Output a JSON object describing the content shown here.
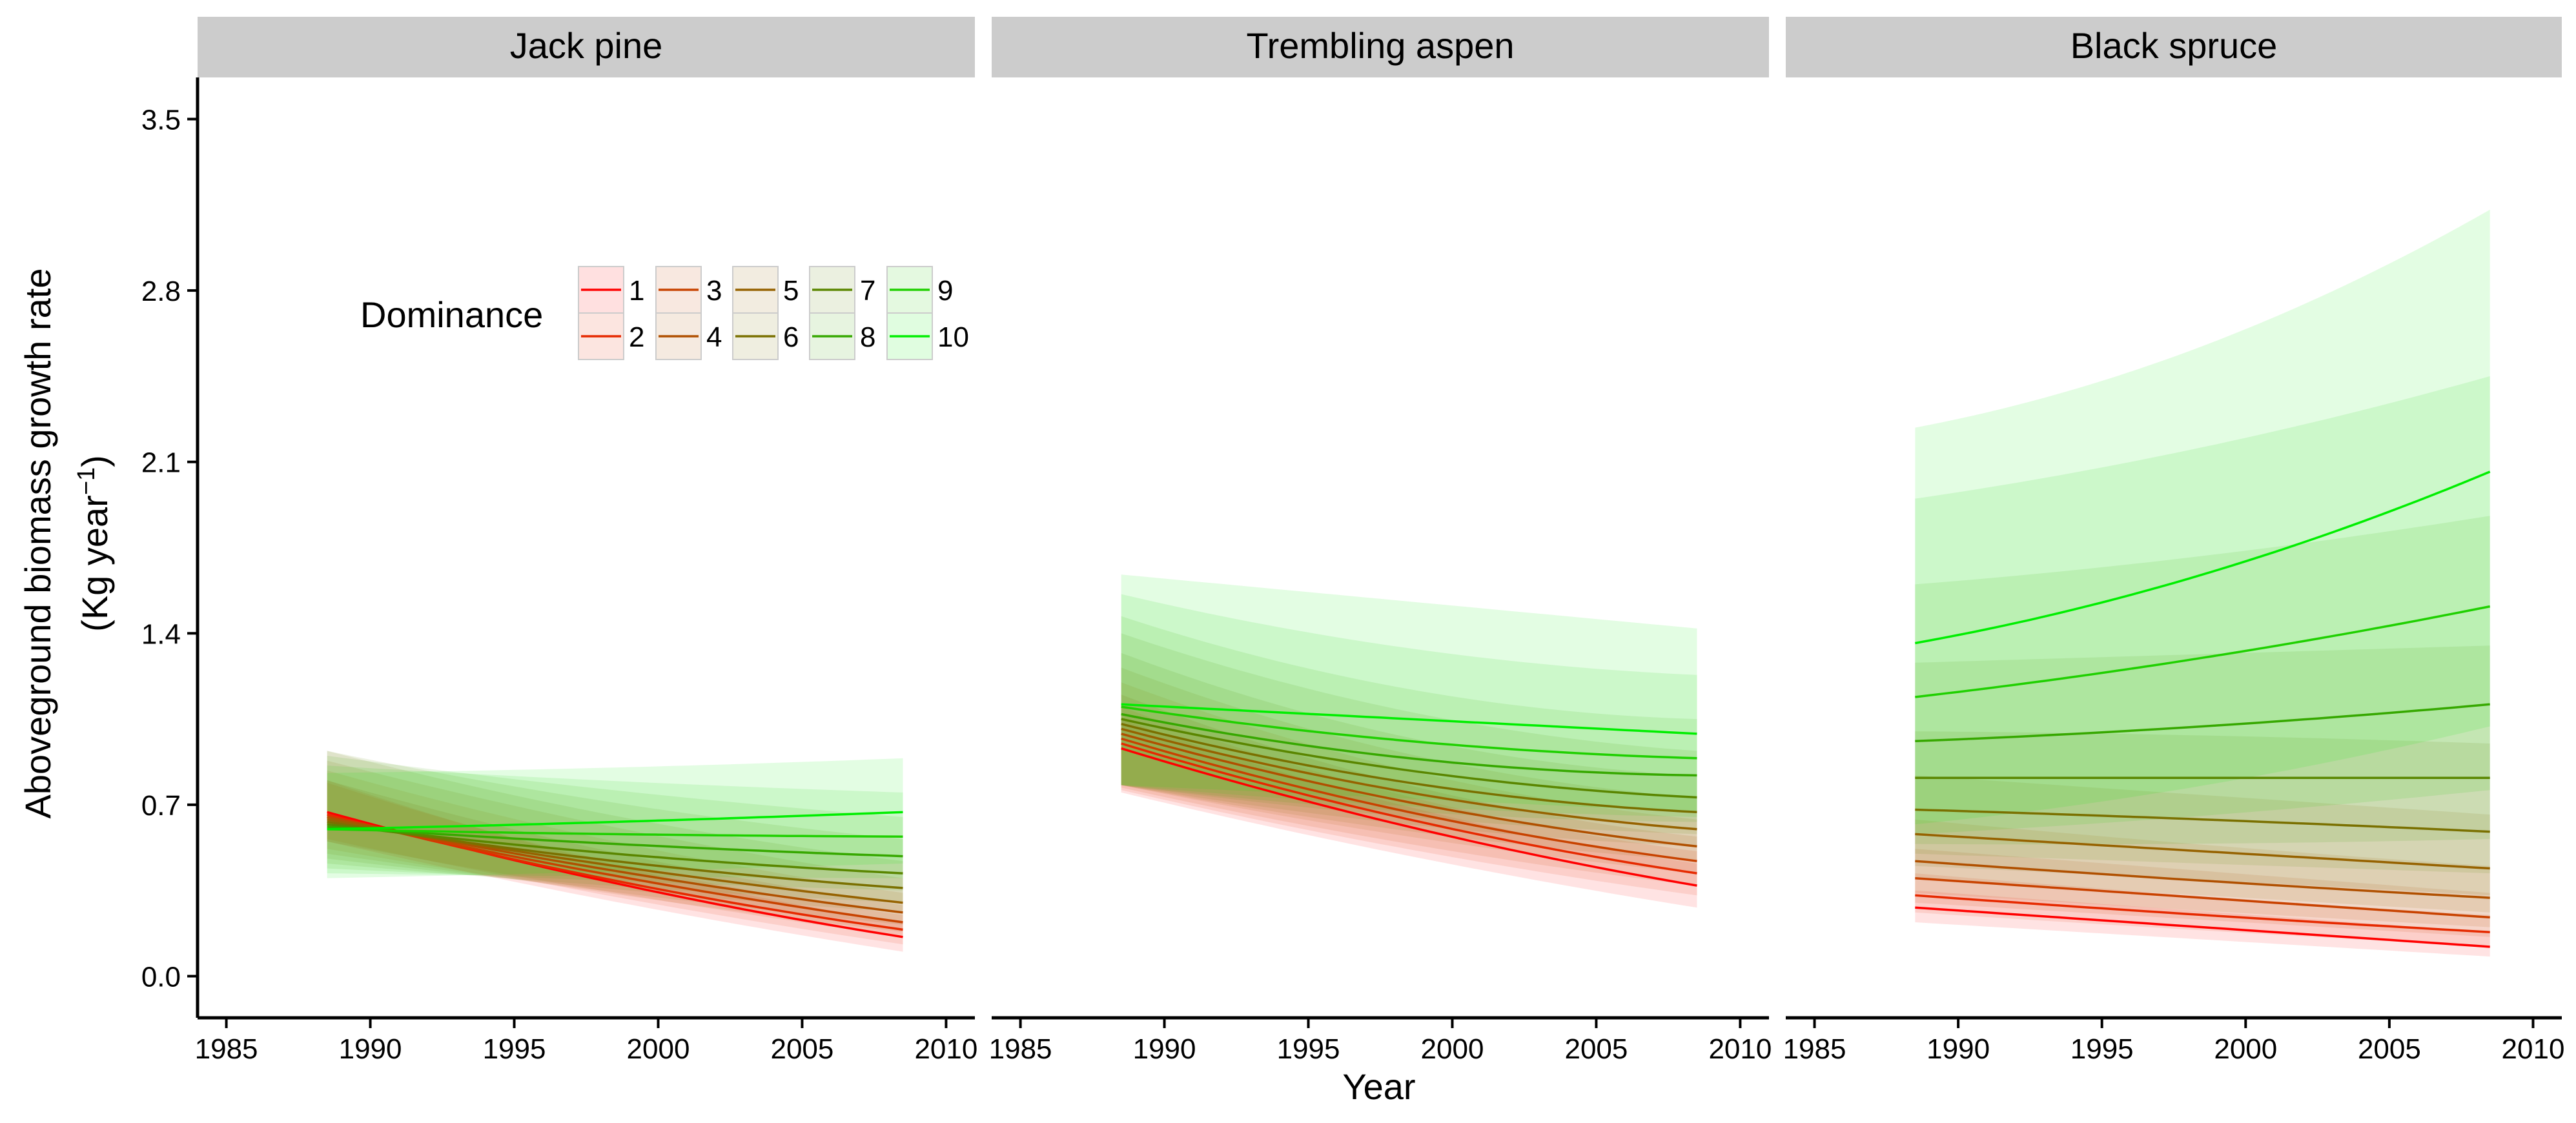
{
  "chart_data": {
    "type": "line",
    "xlabel": "Year",
    "ylabel_line1": "Aboveground biomass growth rate",
    "ylabel_line2_base": "(Kg year",
    "ylabel_line2_sup": "−1",
    "ylabel_line2_end": ")",
    "xlim": [
      1984,
      2011
    ],
    "ylim": [
      -0.17,
      3.67
    ],
    "x_ticks": [
      1985,
      1990,
      1995,
      2000,
      2005,
      2010
    ],
    "y_ticks": [
      0.0,
      0.7,
      1.4,
      2.1,
      2.8,
      3.5
    ],
    "y_tick_labels": [
      "0.0",
      "0.7",
      "1.4",
      "2.1",
      "2.8",
      "3.5"
    ],
    "x_range": [
      1988.5,
      2008.5
    ],
    "grid": false,
    "legend": {
      "title": "Dominance",
      "position": "top-left",
      "entries": [
        "1",
        "2",
        "3",
        "4",
        "5",
        "6",
        "7",
        "8",
        "9",
        "10"
      ]
    },
    "colors": [
      "#ff0000",
      "#e62900",
      "#c84200",
      "#b05000",
      "#966200",
      "#7a7000",
      "#5a8600",
      "#36a800",
      "#1fd000",
      "#00ee00"
    ],
    "panels": [
      {
        "name": "Jack pine",
        "series": [
          {
            "name": "1",
            "y_start": 0.67,
            "y_mid": 0.38,
            "y_end": 0.16,
            "lo_start": 0.55,
            "lo_end": 0.1,
            "hi_start": 0.8,
            "hi_end": 0.22
          },
          {
            "name": "2",
            "y_start": 0.66,
            "y_mid": 0.39,
            "y_end": 0.19,
            "lo_start": 0.56,
            "lo_end": 0.13,
            "hi_start": 0.79,
            "hi_end": 0.25
          },
          {
            "name": "3",
            "y_start": 0.65,
            "y_mid": 0.41,
            "y_end": 0.22,
            "lo_start": 0.55,
            "lo_end": 0.16,
            "hi_start": 0.8,
            "hi_end": 0.29
          },
          {
            "name": "4",
            "y_start": 0.65,
            "y_mid": 0.43,
            "y_end": 0.26,
            "lo_start": 0.52,
            "lo_end": 0.18,
            "hi_start": 0.84,
            "hi_end": 0.34
          },
          {
            "name": "5",
            "y_start": 0.64,
            "y_mid": 0.45,
            "y_end": 0.3,
            "lo_start": 0.5,
            "lo_end": 0.21,
            "hi_start": 0.88,
            "hi_end": 0.4
          },
          {
            "name": "6",
            "y_start": 0.63,
            "y_mid": 0.47,
            "y_end": 0.36,
            "lo_start": 0.48,
            "lo_end": 0.26,
            "hi_start": 0.92,
            "hi_end": 0.47
          },
          {
            "name": "7",
            "y_start": 0.62,
            "y_mid": 0.5,
            "y_end": 0.42,
            "lo_start": 0.46,
            "lo_end": 0.3,
            "hi_start": 0.92,
            "hi_end": 0.56
          },
          {
            "name": "8",
            "y_start": 0.61,
            "y_mid": 0.54,
            "y_end": 0.49,
            "lo_start": 0.44,
            "lo_end": 0.35,
            "hi_start": 0.9,
            "hi_end": 0.65
          },
          {
            "name": "9",
            "y_start": 0.6,
            "y_mid": 0.58,
            "y_end": 0.57,
            "lo_start": 0.42,
            "lo_end": 0.4,
            "hi_start": 0.86,
            "hi_end": 0.75
          },
          {
            "name": "10",
            "y_start": 0.6,
            "y_mid": 0.63,
            "y_end": 0.67,
            "lo_start": 0.4,
            "lo_end": 0.46,
            "hi_start": 0.83,
            "hi_end": 0.89
          }
        ]
      },
      {
        "name": "Trembling aspen",
        "series": [
          {
            "name": "1",
            "y_start": 0.93,
            "y_mid": 0.61,
            "y_end": 0.37,
            "lo_start": 0.75,
            "lo_end": 0.28,
            "hi_start": 1.05,
            "hi_end": 0.46
          },
          {
            "name": "2",
            "y_start": 0.95,
            "y_mid": 0.64,
            "y_end": 0.42,
            "lo_start": 0.76,
            "lo_end": 0.33,
            "hi_start": 1.1,
            "hi_end": 0.51
          },
          {
            "name": "3",
            "y_start": 0.97,
            "y_mid": 0.67,
            "y_end": 0.47,
            "lo_start": 0.77,
            "lo_end": 0.37,
            "hi_start": 1.15,
            "hi_end": 0.57
          },
          {
            "name": "4",
            "y_start": 0.99,
            "y_mid": 0.71,
            "y_end": 0.53,
            "lo_start": 0.78,
            "lo_end": 0.42,
            "hi_start": 1.2,
            "hi_end": 0.64
          },
          {
            "name": "5",
            "y_start": 1.01,
            "y_mid": 0.75,
            "y_end": 0.6,
            "lo_start": 0.78,
            "lo_end": 0.47,
            "hi_start": 1.26,
            "hi_end": 0.73
          },
          {
            "name": "6",
            "y_start": 1.03,
            "y_mid": 0.79,
            "y_end": 0.67,
            "lo_start": 0.78,
            "lo_end": 0.53,
            "hi_start": 1.32,
            "hi_end": 0.82
          },
          {
            "name": "7",
            "y_start": 1.05,
            "y_mid": 0.84,
            "y_end": 0.73,
            "lo_start": 0.78,
            "lo_end": 0.58,
            "hi_start": 1.4,
            "hi_end": 0.92
          },
          {
            "name": "8",
            "y_start": 1.07,
            "y_mid": 0.89,
            "y_end": 0.82,
            "lo_start": 0.78,
            "lo_end": 0.63,
            "hi_start": 1.47,
            "hi_end": 1.05
          },
          {
            "name": "9",
            "y_start": 1.1,
            "y_mid": 0.96,
            "y_end": 0.89,
            "lo_start": 0.78,
            "lo_end": 0.65,
            "hi_start": 1.56,
            "hi_end": 1.23
          },
          {
            "name": "10",
            "y_start": 1.11,
            "y_mid": 1.05,
            "y_end": 0.99,
            "lo_start": 0.78,
            "lo_end": 0.67,
            "hi_start": 1.64,
            "hi_end": 1.42
          }
        ]
      },
      {
        "name": "Black spruce",
        "series": [
          {
            "name": "1",
            "y_start": 0.28,
            "y_mid": 0.2,
            "y_end": 0.12,
            "lo_start": 0.22,
            "lo_end": 0.08,
            "hi_start": 0.35,
            "hi_end": 0.18
          },
          {
            "name": "2",
            "y_start": 0.33,
            "y_mid": 0.25,
            "y_end": 0.18,
            "lo_start": 0.26,
            "lo_end": 0.12,
            "hi_start": 0.42,
            "hi_end": 0.25
          },
          {
            "name": "3",
            "y_start": 0.4,
            "y_mid": 0.32,
            "y_end": 0.24,
            "lo_start": 0.3,
            "lo_end": 0.16,
            "hi_start": 0.52,
            "hi_end": 0.34
          },
          {
            "name": "4",
            "y_start": 0.47,
            "y_mid": 0.39,
            "y_end": 0.32,
            "lo_start": 0.34,
            "lo_end": 0.2,
            "hi_start": 0.64,
            "hi_end": 0.45
          },
          {
            "name": "5",
            "y_start": 0.58,
            "y_mid": 0.51,
            "y_end": 0.44,
            "lo_start": 0.4,
            "lo_end": 0.26,
            "hi_start": 0.82,
            "hi_end": 0.66
          },
          {
            "name": "6",
            "y_start": 0.68,
            "y_mid": 0.64,
            "y_end": 0.59,
            "lo_start": 0.45,
            "lo_end": 0.33,
            "hi_start": 1.0,
            "hi_end": 0.95
          },
          {
            "name": "7",
            "y_start": 0.81,
            "y_mid": 0.81,
            "y_end": 0.81,
            "lo_start": 0.5,
            "lo_end": 0.42,
            "hi_start": 1.28,
            "hi_end": 1.35
          },
          {
            "name": "8",
            "y_start": 0.96,
            "y_mid": 1.02,
            "y_end": 1.11,
            "lo_start": 0.54,
            "lo_end": 0.56,
            "hi_start": 1.6,
            "hi_end": 1.88
          },
          {
            "name": "9",
            "y_start": 1.14,
            "y_mid": 1.3,
            "y_end": 1.51,
            "lo_start": 0.58,
            "lo_end": 0.76,
            "hi_start": 1.95,
            "hi_end": 2.45
          },
          {
            "name": "10",
            "y_start": 1.36,
            "y_mid": 1.64,
            "y_end": 2.06,
            "lo_start": 0.62,
            "lo_end": 1.02,
            "hi_start": 2.24,
            "hi_end": 3.13
          }
        ]
      }
    ]
  }
}
